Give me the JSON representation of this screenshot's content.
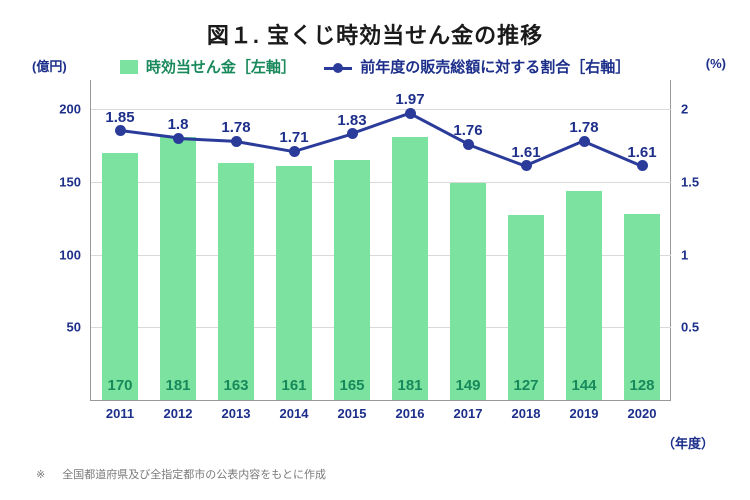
{
  "title": "図１. 宝くじ時効当せん金の推移",
  "title_fontsize": 22,
  "legend": {
    "bar_label": "時効当せん金［左軸］",
    "line_label": "前年度の販売総額に対する割合［右軸］",
    "bar_color": "#7be39f",
    "line_color": "#2a3b9a",
    "text_color": "#18895a",
    "line_text_color": "#1d2f8a",
    "fontsize": 15
  },
  "y_left": {
    "unit": "(億円)",
    "min": 0,
    "max": 220,
    "ticks": [
      50,
      100,
      150,
      200
    ],
    "fontsize": 13
  },
  "y_right": {
    "unit": "(%)",
    "min": 0,
    "max": 2.2,
    "ticks": [
      0.5,
      1,
      1.5,
      2
    ],
    "fontsize": 13
  },
  "x": {
    "title": "（年度）",
    "categories": [
      "2011",
      "2012",
      "2013",
      "2014",
      "2015",
      "2016",
      "2017",
      "2018",
      "2019",
      "2020"
    ],
    "fontsize": 13
  },
  "bars": {
    "type": "bar",
    "values": [
      170,
      181,
      163,
      161,
      165,
      181,
      149,
      127,
      144,
      128
    ],
    "color": "#7be39f",
    "value_label_color": "#18895a",
    "value_fontsize": 15,
    "bar_width_frac": 0.62
  },
  "line": {
    "type": "line",
    "values": [
      1.85,
      1.8,
      1.78,
      1.71,
      1.83,
      1.97,
      1.76,
      1.61,
      1.78,
      1.61
    ],
    "color": "#2a3b9a",
    "width": 3,
    "marker": "circle",
    "marker_size": 11,
    "label_fontsize": 15
  },
  "grid": {
    "color": "#d9d9d9"
  },
  "axis_color": "#1d2f8a",
  "footnote": {
    "marker": "※",
    "text": "全国都道府県及び全指定都市の公表内容をもとに作成"
  }
}
